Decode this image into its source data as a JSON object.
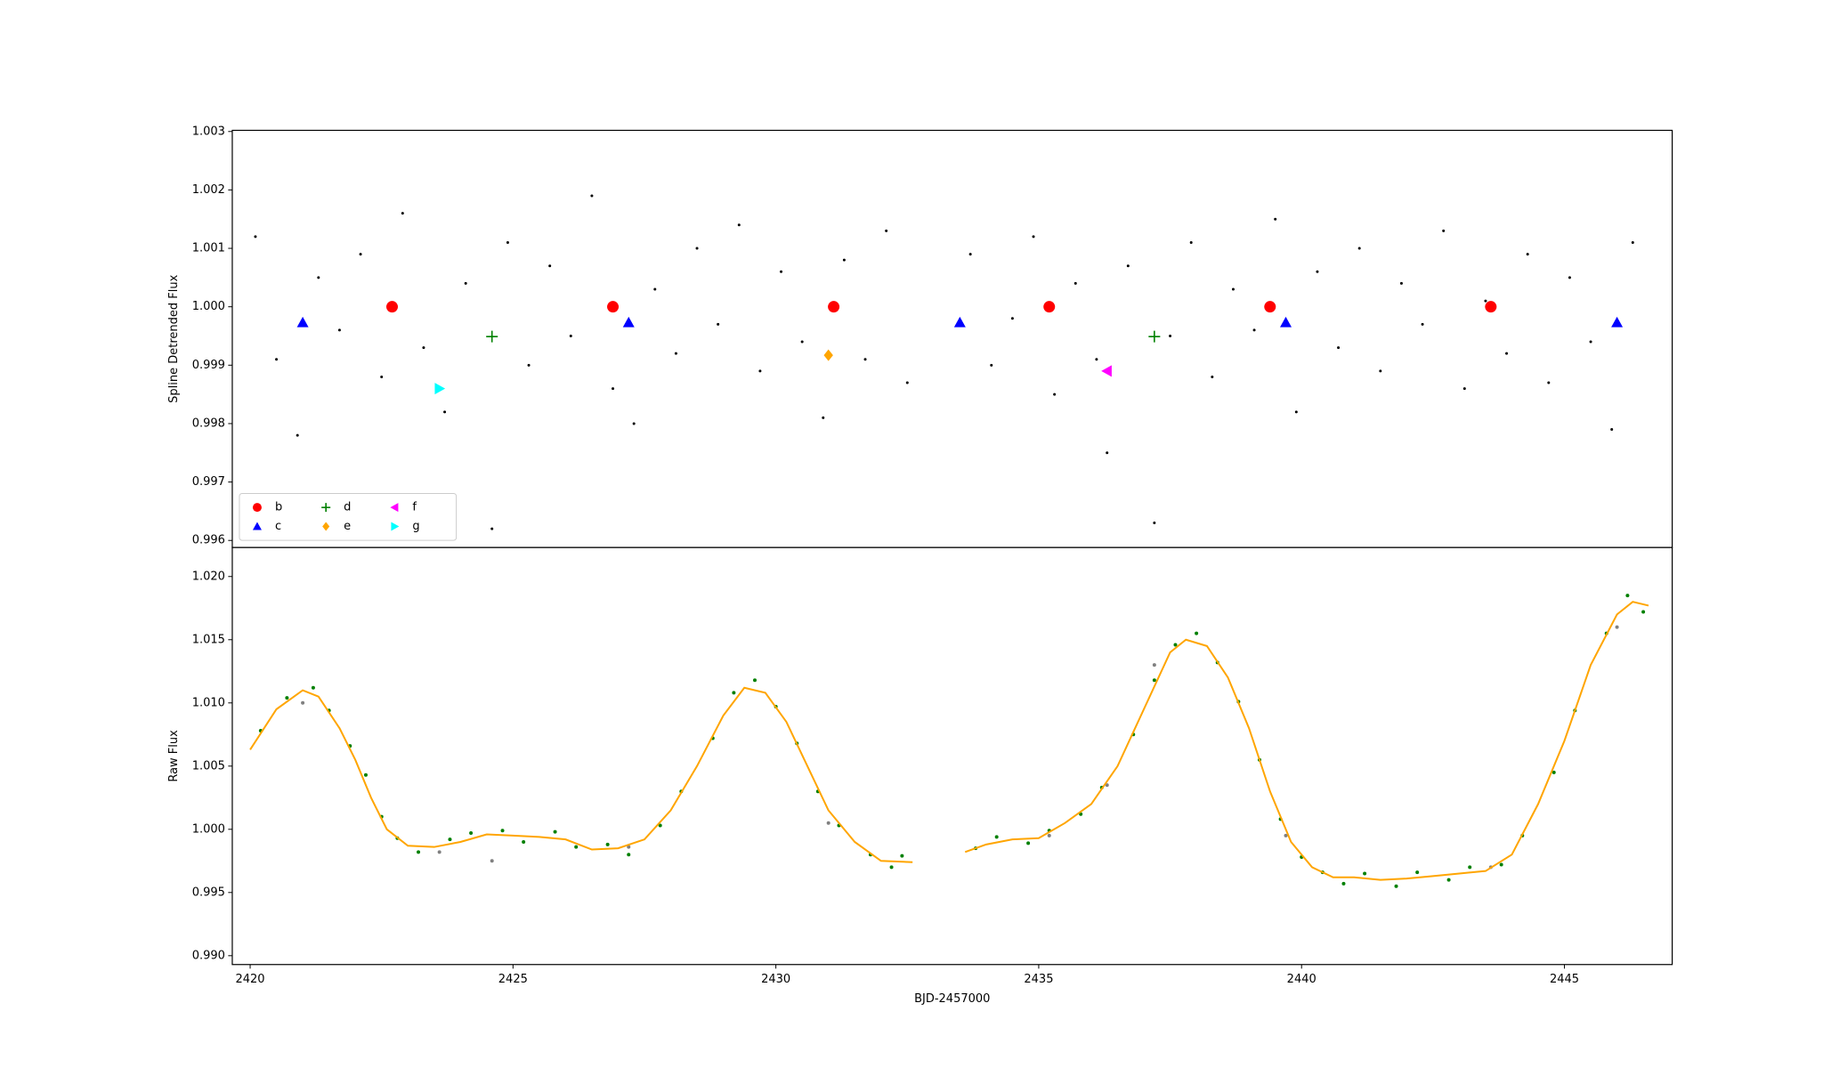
{
  "chart_data": [
    {
      "type": "scatter",
      "ylabel": "Spline Detrended Flux",
      "xlim": [
        2419.66,
        2447.05
      ],
      "ylim": [
        0.99588,
        1.00302
      ],
      "yticks": [
        0.996,
        0.997,
        0.998,
        0.999,
        {
          "value": 1,
          "label": "1.000"
        },
        1.001,
        1.002,
        1.003
      ],
      "legend": "lower left",
      "legend_columns": 3,
      "series": [
        {
          "type": "scatter",
          "color": "#000000",
          "marker": "o",
          "x": [
            2420.1,
            2420.5,
            2420.9,
            2421.3,
            2421.7,
            2422.1,
            2422.5,
            2422.9,
            2423.3,
            2423.7,
            2424.1,
            2424.6,
            2424.9,
            2425.3,
            2425.7,
            2426.1,
            2426.5,
            2426.9,
            2427.3,
            2427.7,
            2428.1,
            2428.5,
            2428.9,
            2429.3,
            2429.7,
            2430.1,
            2430.5,
            2430.9,
            2431.3,
            2431.7,
            2432.1,
            2432.5,
            2433.7,
            2434.1,
            2434.5,
            2434.9,
            2435.3,
            2435.7,
            2436.1,
            2436.3,
            2436.7,
            2437.2,
            2437.5,
            2437.9,
            2438.3,
            2438.7,
            2439.1,
            2439.5,
            2439.9,
            2440.3,
            2440.7,
            2441.1,
            2441.5,
            2441.9,
            2442.3,
            2442.7,
            2443.1,
            2443.5,
            2443.9,
            2444.3,
            2444.7,
            2445.1,
            2445.5,
            2445.9,
            2446.3
          ],
          "values": [
            1.0012,
            0.9991,
            0.9978,
            1.0005,
            0.9996,
            1.0009,
            0.9988,
            1.0016,
            0.9993,
            0.9982,
            1.0004,
            0.9962,
            1.0011,
            0.999,
            1.0007,
            0.9995,
            1.0019,
            0.9986,
            0.998,
            1.0003,
            0.9992,
            1.001,
            0.9997,
            1.0014,
            0.9989,
            1.0006,
            0.9994,
            0.9981,
            1.0008,
            0.9991,
            1.0013,
            0.9987,
            1.0009,
            0.999,
            0.9998,
            1.0012,
            0.9985,
            1.0004,
            0.9991,
            0.9975,
            1.0007,
            0.9963,
            0.9995,
            1.0011,
            0.9988,
            1.0003,
            0.9996,
            1.0015,
            0.9982,
            1.0006,
            0.9993,
            1.001,
            0.9989,
            1.0004,
            0.9997,
            1.0013,
            0.9986,
            1.0001,
            0.9992,
            1.0009,
            0.9987,
            1.0005,
            0.9994,
            0.9979,
            1.0011
          ]
        },
        {
          "type": "scatter",
          "name": "b",
          "color": "#ff0000",
          "marker": "o",
          "x": [
            2422.7,
            2426.9,
            2431.1,
            2435.2,
            2439.4,
            2443.6
          ],
          "values": [
            1.0,
            1.0,
            1.0,
            1.0,
            1.0,
            1.0
          ]
        },
        {
          "type": "scatter",
          "name": "c",
          "color": "#0000ff",
          "marker": "^",
          "x": [
            2421.0,
            2427.2,
            2433.5,
            2439.7,
            2446.0
          ],
          "values": [
            0.99973,
            0.99973,
            0.99973,
            0.99973,
            0.99973
          ]
        },
        {
          "type": "scatter",
          "name": "d",
          "color": "#008000",
          "marker": "+",
          "x": [
            2424.6,
            2437.2
          ],
          "values": [
            0.99949,
            0.99949
          ]
        },
        {
          "type": "scatter",
          "name": "e",
          "color": "#ffa500",
          "marker": "D",
          "x": [
            2431.0
          ],
          "values": [
            0.99917
          ]
        },
        {
          "type": "scatter",
          "name": "f",
          "color": "#ff00ff",
          "marker": "<",
          "x": [
            2436.3
          ],
          "values": [
            0.9989
          ]
        },
        {
          "type": "scatter",
          "name": "g",
          "color": "#00ffff",
          "marker": ">",
          "x": [
            2423.6
          ],
          "values": [
            0.9986
          ]
        }
      ]
    },
    {
      "type": "scatter",
      "ylabel": "Raw Flux",
      "xlabel": "BJD-2457000",
      "xlim": [
        2419.66,
        2447.05
      ],
      "ylim": [
        0.9893,
        1.0223
      ],
      "xticks": [
        2420,
        2425,
        2430,
        2435,
        2440,
        2445
      ],
      "yticks": [
        {
          "value": 0.99,
          "label": "0.990"
        },
        0.995,
        {
          "value": 1,
          "label": "1.000"
        },
        1.005,
        {
          "value": 1.01,
          "label": "1.010"
        },
        1.015,
        {
          "value": 1.02,
          "label": "1.020"
        }
      ],
      "series": [
        {
          "type": "scatter",
          "color": "#008000",
          "marker": "o",
          "x": [
            2420.2,
            2420.7,
            2421.2,
            2421.5,
            2421.9,
            2422.2,
            2422.5,
            2422.8,
            2423.2,
            2423.8,
            2424.2,
            2424.8,
            2425.2,
            2425.8,
            2426.2,
            2426.8,
            2427.2,
            2427.8,
            2428.2,
            2428.8,
            2429.2,
            2429.6,
            2430.0,
            2430.4,
            2430.8,
            2431.2,
            2431.8,
            2432.2,
            2432.4,
            2433.8,
            2434.2,
            2434.8,
            2435.2,
            2435.8,
            2436.2,
            2436.8,
            2437.2,
            2437.6,
            2438.0,
            2438.4,
            2438.8,
            2439.2,
            2439.6,
            2440.0,
            2440.4,
            2440.8,
            2441.2,
            2441.8,
            2442.2,
            2442.8,
            2443.2,
            2443.8,
            2444.2,
            2444.8,
            2445.2,
            2445.8,
            2446.2,
            2446.5
          ],
          "values": [
            1.0078,
            1.0104,
            1.0112,
            1.0094,
            1.0066,
            1.0043,
            1.001,
            0.9993,
            0.9982,
            0.9992,
            0.9997,
            0.9999,
            0.999,
            0.9998,
            0.9986,
            0.9988,
            0.998,
            1.0003,
            1.003,
            1.0072,
            1.0108,
            1.0118,
            1.0097,
            1.0068,
            1.003,
            1.0003,
            0.998,
            0.997,
            0.9979,
            0.9985,
            0.9994,
            0.9989,
            0.9999,
            1.0012,
            1.0033,
            1.0075,
            1.0118,
            1.0146,
            1.0155,
            1.0132,
            1.0101,
            1.0055,
            1.0008,
            0.9978,
            0.9966,
            0.9957,
            0.9965,
            0.9955,
            0.9966,
            0.996,
            0.997,
            0.9972,
            0.9995,
            1.0045,
            1.0094,
            1.0155,
            1.0185,
            1.0172
          ]
        },
        {
          "type": "scatter",
          "color": "#808080",
          "marker": "o",
          "x": [
            2421.0,
            2423.6,
            2424.6,
            2427.2,
            2431.0,
            2435.2,
            2436.3,
            2437.2,
            2439.7,
            2443.6,
            2446.0
          ],
          "values": [
            1.01,
            0.9982,
            0.9975,
            0.9986,
            1.0005,
            0.9995,
            1.0035,
            1.013,
            0.9995,
            0.997,
            1.016
          ]
        },
        {
          "type": "line",
          "color": "#ffa500",
          "x": [
            2420.0,
            2420.5,
            2421.0,
            2421.3,
            2421.7,
            2422.0,
            2422.3,
            2422.6,
            2423.0,
            2423.5,
            2424.0,
            2424.5,
            2425.0,
            2425.5,
            2426.0,
            2426.5,
            2427.0,
            2427.5,
            2428.0,
            2428.5,
            2429.0,
            2429.4,
            2429.8,
            2430.2,
            2430.6,
            2431.0,
            2431.5,
            2432.0,
            2432.6,
            2433.0,
            2433.6,
            2434.0,
            2434.5,
            2435.0,
            2435.5,
            2436.0,
            2436.5,
            2437.0,
            2437.5,
            2437.8,
            2438.2,
            2438.6,
            2439.0,
            2439.4,
            2439.8,
            2440.2,
            2440.6,
            2441.0,
            2441.5,
            2442.0,
            2442.5,
            2443.0,
            2443.5,
            2444.0,
            2444.5,
            2445.0,
            2445.5,
            2446.0,
            2446.3,
            2446.6
          ],
          "values": [
            1.0063,
            1.0095,
            1.011,
            1.0105,
            1.008,
            1.0055,
            1.0025,
            1.0,
            0.9987,
            0.9986,
            0.999,
            0.9996,
            0.9995,
            0.9994,
            0.9992,
            0.9984,
            0.9985,
            0.9992,
            1.0015,
            1.005,
            1.009,
            1.0112,
            1.0108,
            1.0085,
            1.005,
            1.0015,
            0.999,
            0.9975,
            0.9974,
            null,
            0.9982,
            0.9988,
            0.9992,
            0.9993,
            1.0005,
            1.002,
            1.005,
            1.0095,
            1.014,
            1.015,
            1.0145,
            1.012,
            1.008,
            1.003,
            0.999,
            0.997,
            0.9962,
            0.9962,
            0.996,
            0.9961,
            0.9963,
            0.9965,
            0.9967,
            0.998,
            1.002,
            1.007,
            1.013,
            1.017,
            1.018,
            1.0177
          ]
        }
      ]
    }
  ]
}
